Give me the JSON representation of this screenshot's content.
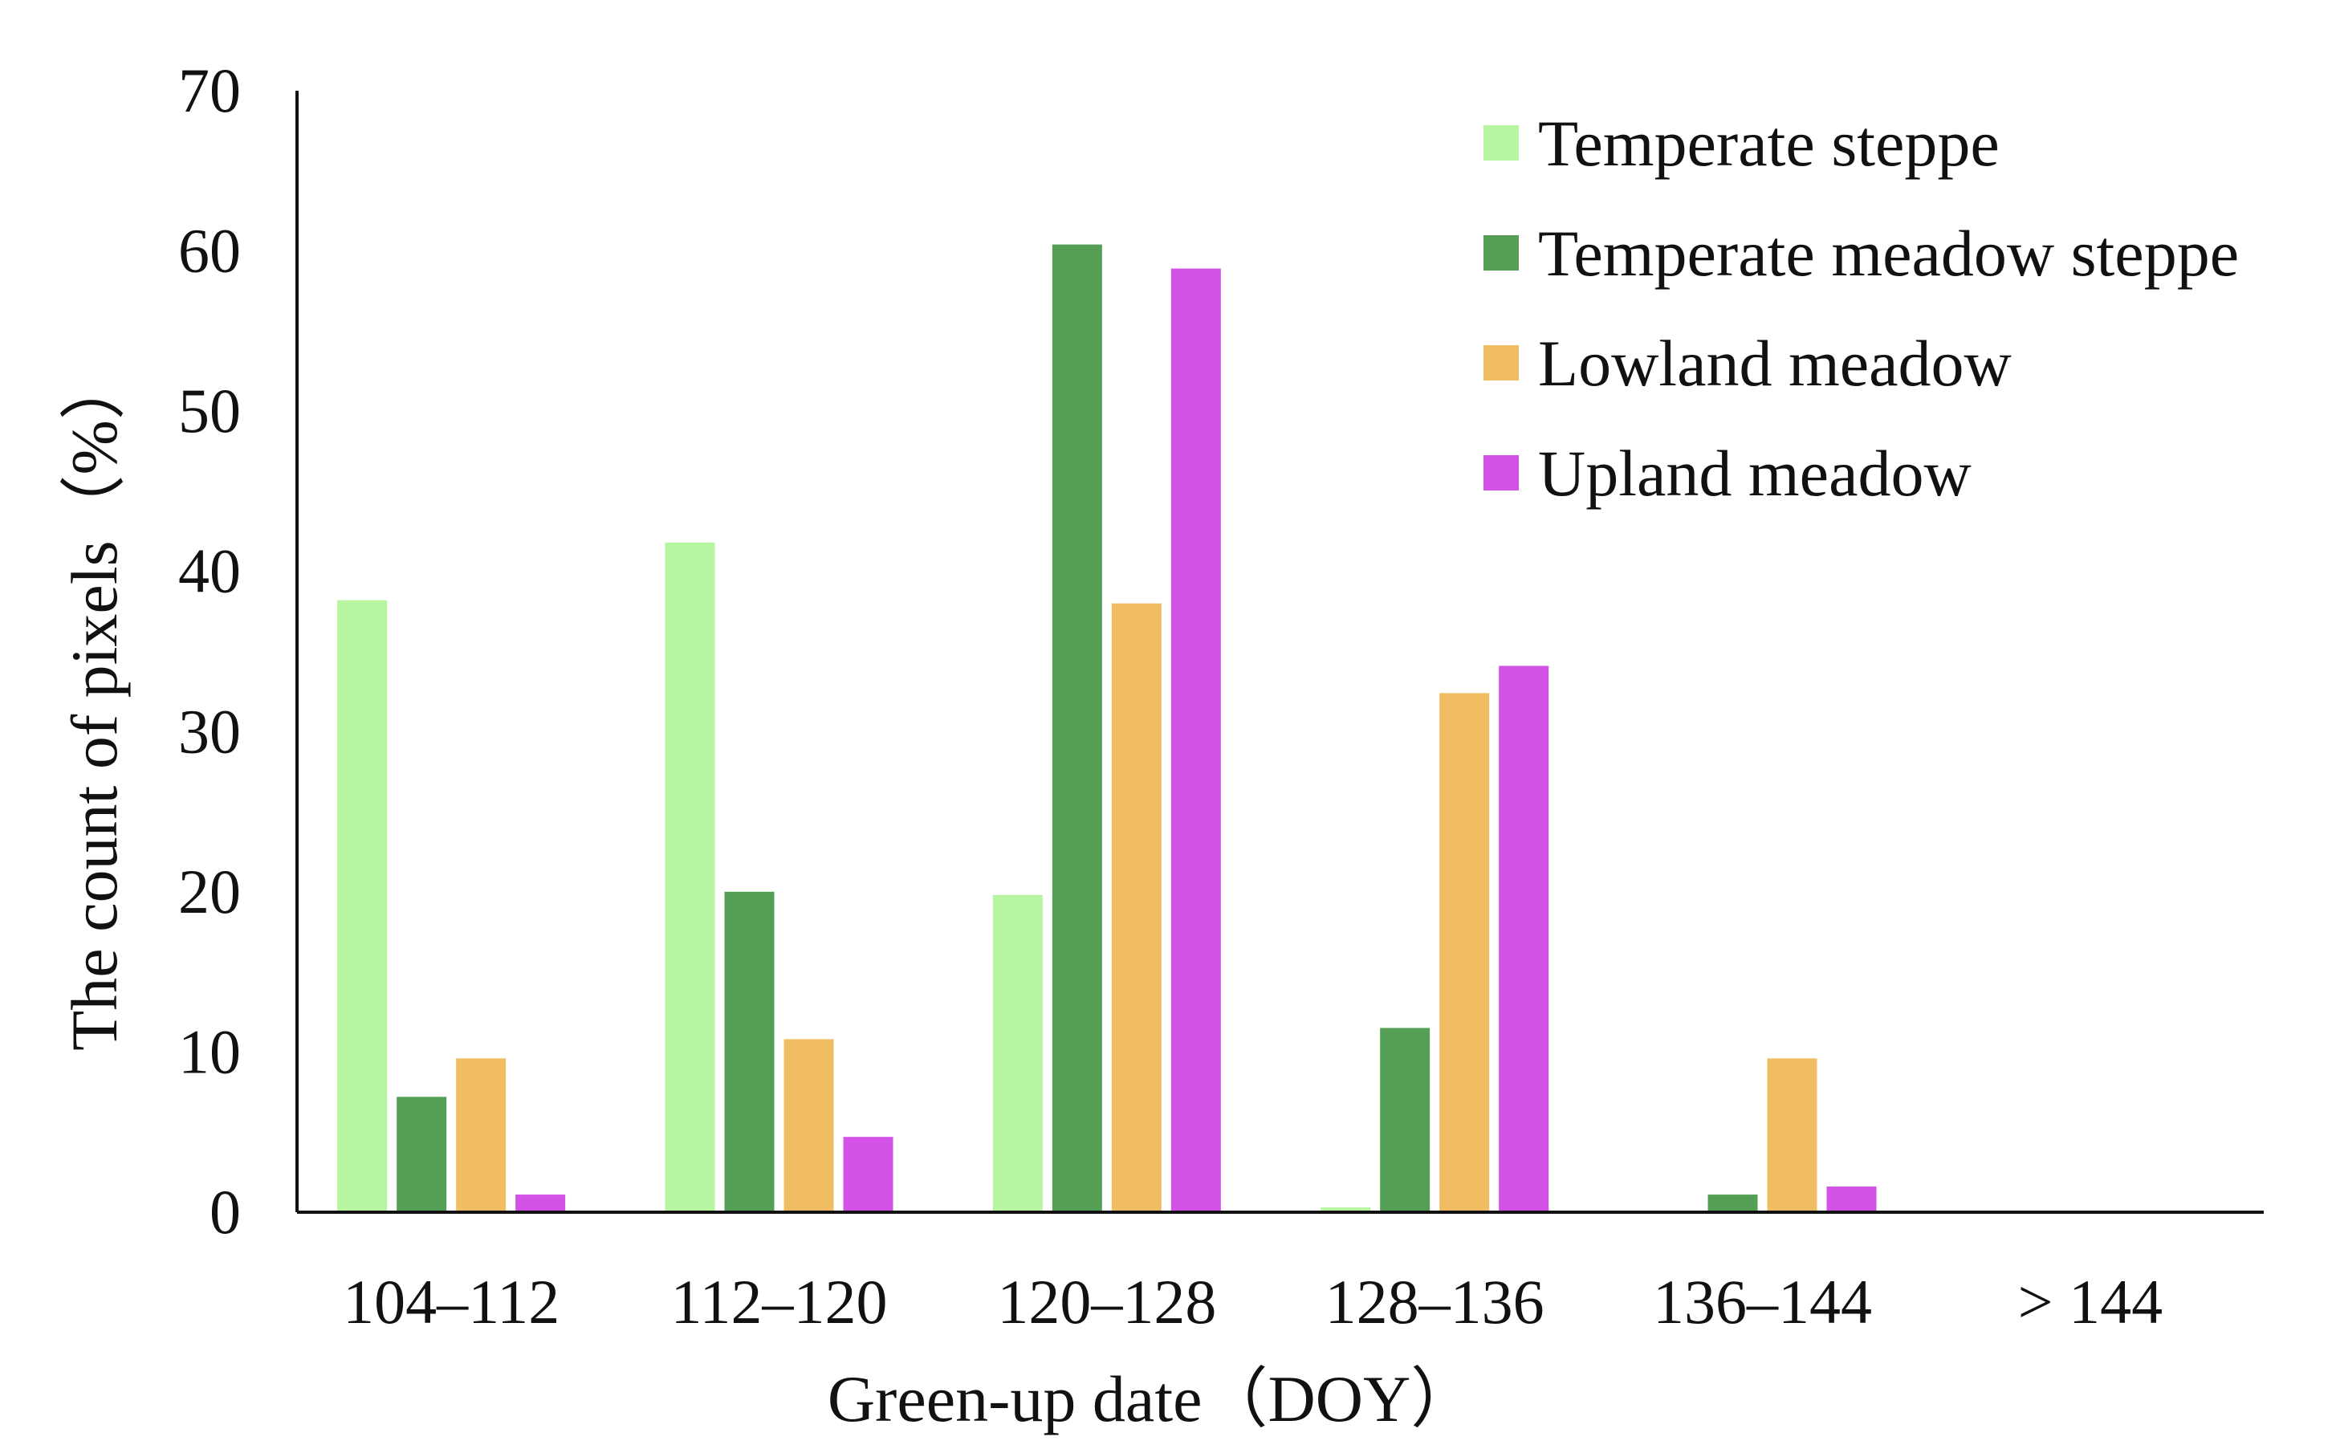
{
  "chart_data": {
    "type": "bar",
    "xlabel": "Green-up date（DOY）",
    "ylabel": "The count of pixels（%）",
    "ylim": [
      0,
      70
    ],
    "yticks": [
      "0",
      "10",
      "20",
      "30",
      "40",
      "50",
      "60",
      "70"
    ],
    "categories": [
      "104–112",
      "112–120",
      "120–128",
      "128–136",
      "136–144",
      "> 144"
    ],
    "legend_position": "top-right",
    "series": [
      {
        "name": "Temperate steppe",
        "color": "#b8f5a0",
        "values": [
          38.2,
          41.8,
          19.8,
          0.3,
          0,
          0
        ]
      },
      {
        "name": "Temperate meadow steppe",
        "color": "#549f55",
        "values": [
          7.2,
          20.0,
          60.4,
          11.5,
          1.1,
          0
        ]
      },
      {
        "name": "Lowland meadow",
        "color": "#f0bd62",
        "values": [
          9.6,
          10.8,
          38.0,
          32.4,
          9.6,
          0
        ]
      },
      {
        "name": "Upland meadow",
        "color": "#d152e5",
        "values": [
          1.1,
          4.7,
          58.9,
          34.1,
          1.6,
          0
        ]
      }
    ]
  }
}
